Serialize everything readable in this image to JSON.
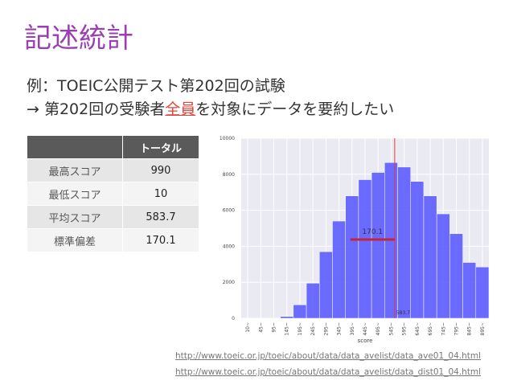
{
  "title": "記述統計",
  "subtitle": [
    "例：TOEIC公開テスト第202回の試験",
    {
      "before": "→ 第202回の受験者",
      "emphasis": "全員",
      "after": "を対象にデータを要約したい"
    }
  ],
  "table": {
    "header": [
      "",
      "トータル"
    ],
    "rows": [
      [
        "最高スコア",
        "990"
      ],
      [
        "最低スコア",
        "10"
      ],
      [
        "平均スコア",
        "583.7"
      ],
      [
        "標準偏差",
        "170.1"
      ]
    ]
  },
  "chart_data": {
    "type": "bar",
    "xlabel": "score",
    "categories": [
      "10~",
      "45~",
      "95~",
      "145~",
      "195~",
      "245~",
      "295~",
      "345~",
      "395~",
      "445~",
      "495~",
      "545~",
      "595~",
      "645~",
      "695~",
      "745~",
      "795~",
      "845~",
      "895~"
    ],
    "values": [
      0,
      0,
      0,
      100,
      750,
      1950,
      3700,
      5400,
      6800,
      7700,
      8100,
      8650,
      8400,
      7600,
      6800,
      5800,
      4700,
      3100,
      2850
    ],
    "color": "#5c5cff",
    "ylim": [
      0,
      10000
    ],
    "yticks": [
      0,
      2000,
      4000,
      6000,
      8000,
      10000
    ],
    "grid": true,
    "mean": 583.7,
    "std": 170.1,
    "mean_color": "#e03a3a",
    "std_color": "#c0283a"
  },
  "links": [
    "http://www.toeic.or.jp/toeic/about/data/data_avelist/data_ave01_04.html",
    "http://www.toeic.or.jp/toeic/about/data/data_avelist/data_dist01_04.html"
  ]
}
